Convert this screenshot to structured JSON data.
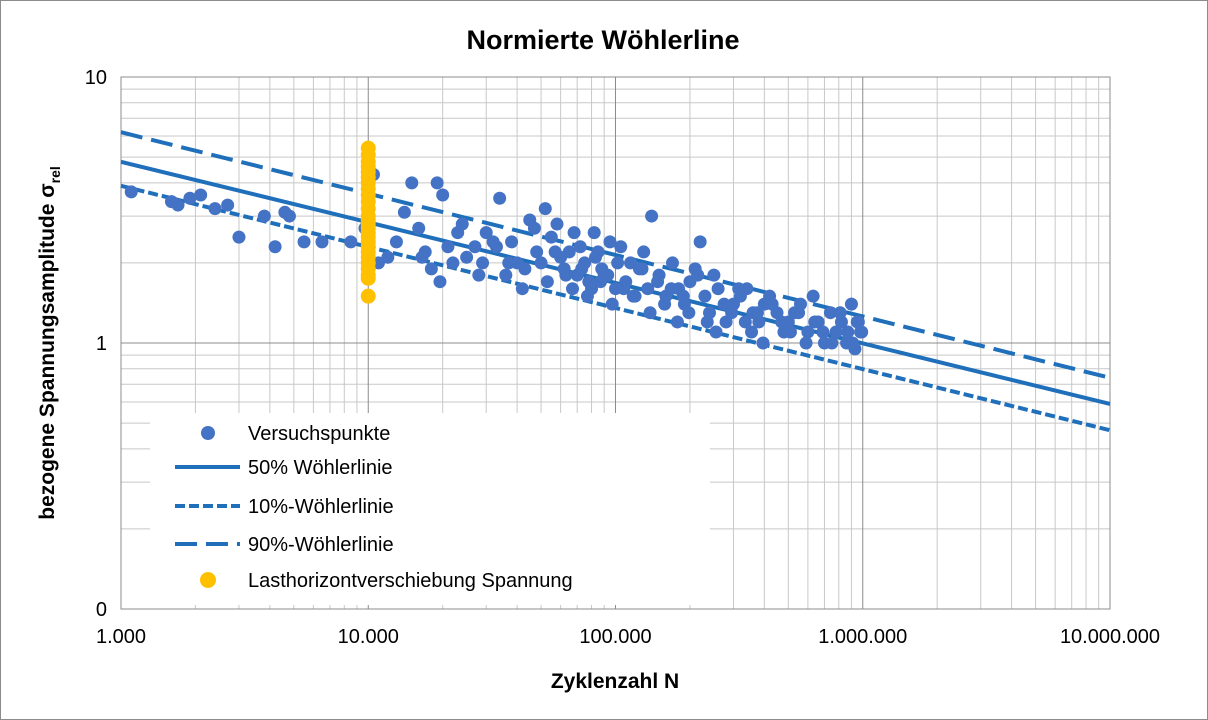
{
  "chart_data": {
    "type": "scatter",
    "title": "Normierte Wöhlerline",
    "xlabel": "Zyklenzahl N",
    "ylabel": "bezogene Spannungsamplitude σ",
    "ylabel_sub": "rel",
    "x_scale": "log",
    "y_scale": "log",
    "xlim": [
      1000,
      10000000
    ],
    "ylim": [
      0.1,
      10
    ],
    "grid": true,
    "legend_position": "bottom-left",
    "x_ticks": [
      {
        "value": 1000,
        "label": "1.000"
      },
      {
        "value": 10000,
        "label": "10.000"
      },
      {
        "value": 100000,
        "label": "100.000"
      },
      {
        "value": 1000000,
        "label": "1.000.000"
      },
      {
        "value": 10000000,
        "label": "10.000.000"
      }
    ],
    "y_ticks": [
      {
        "value": 0.1,
        "label": "0"
      },
      {
        "value": 1,
        "label": "1"
      },
      {
        "value": 10,
        "label": "10"
      }
    ],
    "series": [
      {
        "name": "Versuchspunkte",
        "kind": "points",
        "color": "#4472c4",
        "x": [
          1100,
          1600,
          1700,
          1900,
          2100,
          2400,
          2700,
          3000,
          3800,
          4200,
          4600,
          4800,
          5500,
          6500,
          8500,
          9700,
          10500,
          11000,
          12000,
          13000,
          15000,
          16000,
          17000,
          18000,
          19000,
          20000,
          21000,
          22000,
          23000,
          25000,
          27000,
          29000,
          30000,
          32000,
          34000,
          36000,
          38000,
          40000,
          42000,
          45000,
          48000,
          50000,
          52000,
          55000,
          58000,
          60000,
          62000,
          65000,
          68000,
          70000,
          72000,
          75000,
          78000,
          80000,
          82000,
          85000,
          88000,
          90000,
          95000,
          100000,
          105000,
          110000,
          115000,
          120000,
          125000,
          130000,
          135000,
          140000,
          150000,
          160000,
          170000,
          180000,
          190000,
          200000,
          210000,
          220000,
          230000,
          240000,
          250000,
          260000,
          280000,
          300000,
          320000,
          340000,
          360000,
          380000,
          400000,
          420000,
          450000,
          480000,
          500000,
          530000,
          560000,
          600000,
          630000,
          660000,
          700000,
          740000,
          780000,
          820000,
          860000,
          900000,
          930000,
          960000,
          980000,
          14000,
          16500,
          19500,
          24000,
          28000,
          33000,
          37000,
          43000,
          47000,
          53000,
          57000,
          63000,
          67000,
          73000,
          77000,
          83000,
          87000,
          93000,
          97000,
          102000,
          108000,
          118000,
          128000,
          138000,
          148000,
          158000,
          168000,
          178000,
          188000,
          198000,
          215000,
          235000,
          255000,
          275000,
          295000,
          315000,
          335000,
          355000,
          375000,
          395000,
          430000,
          470000,
          510000,
          550000,
          590000,
          640000,
          690000,
          750000,
          810000,
          870000,
          910000,
          950000,
          990000
        ],
        "y": [
          3.7,
          3.4,
          3.3,
          3.5,
          3.6,
          3.2,
          3.3,
          2.5,
          3.0,
          2.3,
          3.1,
          3.0,
          2.4,
          2.4,
          2.4,
          2.7,
          4.3,
          2.0,
          2.1,
          2.4,
          4.0,
          2.7,
          2.2,
          1.9,
          4.0,
          3.6,
          2.3,
          2.0,
          2.6,
          2.1,
          2.3,
          2.0,
          2.6,
          2.4,
          3.5,
          1.8,
          2.4,
          2.0,
          1.6,
          2.9,
          2.2,
          2.0,
          3.2,
          2.5,
          2.8,
          2.1,
          1.9,
          2.2,
          2.6,
          1.8,
          2.3,
          2.0,
          1.7,
          1.6,
          2.6,
          2.2,
          1.9,
          1.8,
          2.4,
          1.6,
          2.3,
          1.7,
          2.0,
          1.5,
          1.9,
          2.2,
          1.6,
          3.0,
          1.8,
          1.5,
          2.0,
          1.6,
          1.4,
          1.7,
          1.9,
          2.4,
          1.5,
          1.3,
          1.8,
          1.6,
          1.2,
          1.4,
          1.5,
          1.6,
          1.3,
          1.2,
          1.4,
          1.5,
          1.3,
          1.1,
          1.2,
          1.3,
          1.4,
          1.1,
          1.5,
          1.2,
          1.0,
          1.3,
          1.1,
          1.2,
          1.0,
          1.4,
          0.95,
          1.2,
          1.1,
          3.1,
          2.1,
          1.7,
          2.8,
          1.8,
          2.3,
          2.0,
          1.9,
          2.7,
          1.7,
          2.2,
          1.8,
          1.6,
          1.9,
          1.5,
          2.1,
          1.7,
          1.8,
          1.4,
          2.0,
          1.6,
          1.5,
          1.9,
          1.3,
          1.7,
          1.4,
          1.6,
          1.2,
          1.5,
          1.3,
          1.8,
          1.2,
          1.1,
          1.4,
          1.3,
          1.6,
          1.2,
          1.1,
          1.3,
          1.0,
          1.4,
          1.2,
          1.1,
          1.3,
          1.0,
          1.2,
          1.1,
          1.0,
          1.3,
          1.1,
          1.0,
          1.2,
          1.1
        ]
      },
      {
        "name": "50% Wöhlerlinie",
        "kind": "line",
        "dash": "solid",
        "color": "#1f6fba",
        "x": [
          1000,
          10000000
        ],
        "y": [
          4.8,
          0.59
        ]
      },
      {
        "name": "10%-Wöhlerlinie",
        "kind": "line",
        "dash": "short",
        "color": "#1f6fba",
        "x": [
          1000,
          10000000
        ],
        "y": [
          3.9,
          0.47
        ]
      },
      {
        "name": "90%-Wöhlerlinie",
        "kind": "line",
        "dash": "long",
        "color": "#1f6fba",
        "x": [
          1000,
          10000000
        ],
        "y": [
          6.2,
          0.74
        ]
      },
      {
        "name": "Lasthorizontverschiebung Spannung",
        "kind": "points",
        "color": "#ffc000",
        "x": [
          10000,
          10000,
          10000,
          10000,
          10000,
          10000,
          10000,
          10000,
          10000,
          10000,
          10000,
          10000,
          10000,
          10000,
          10000,
          10000,
          10000,
          10000,
          10000,
          10000,
          10000,
          10000,
          10000,
          10000,
          10000,
          10000
        ],
        "y": [
          1.5,
          1.75,
          1.8,
          1.9,
          2.0,
          2.1,
          2.2,
          2.3,
          2.4,
          2.5,
          2.6,
          2.7,
          2.8,
          2.9,
          3.0,
          3.2,
          3.4,
          3.6,
          3.8,
          4.0,
          4.2,
          4.4,
          4.6,
          4.8,
          5.1,
          5.4
        ]
      }
    ]
  }
}
